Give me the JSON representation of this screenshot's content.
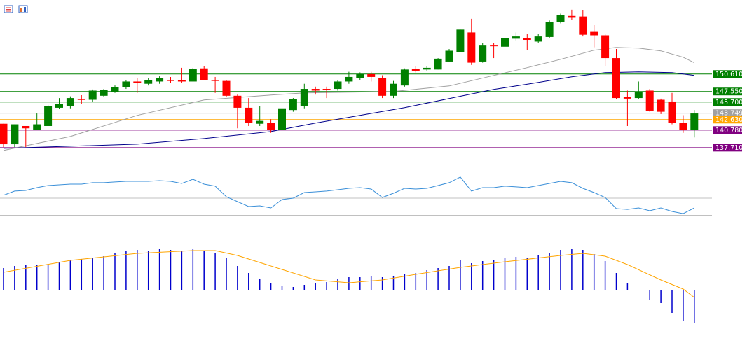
{
  "chart_data": [
    {
      "type": "candlestick",
      "ylim": [
        137.2,
        163.6
      ],
      "up_color": "#008000",
      "down_color": "#ff0000",
      "open": [
        141.9,
        138.3,
        141.5,
        140.8,
        141.5,
        144.7,
        145.0,
        146.2,
        146.1,
        146.8,
        147.5,
        148.3,
        149.3,
        148.9,
        149.3,
        149.6,
        149.5,
        149.3,
        151.6,
        149.6,
        149.4,
        146.8,
        144.7,
        141.9,
        142.1,
        140.8,
        144.3,
        145.0,
        148.0,
        148.0,
        148.0,
        149.3,
        149.9,
        150.6,
        149.9,
        146.8,
        148.6,
        151.5,
        151.4,
        151.4,
        152.8,
        154.5,
        157.9,
        152.8,
        155.6,
        155.4,
        156.8,
        156.9,
        156.3,
        157.1,
        159.7,
        160.8,
        160.7,
        158.0,
        157.4,
        153.4,
        146.6,
        146.4,
        147.7,
        146.1,
        145.8,
        142.1,
        140.8
      ],
      "high": [
        141.9,
        141.8,
        141.5,
        143.7,
        145.2,
        146.4,
        146.7,
        146.9,
        147.9,
        148.0,
        148.6,
        149.5,
        149.9,
        149.9,
        150.2,
        150.1,
        151.7,
        151.7,
        152.0,
        150.1,
        149.6,
        147.0,
        146.4,
        145.0,
        142.7,
        145.7,
        146.4,
        148.9,
        148.4,
        148.4,
        149.5,
        151.0,
        150.9,
        151.0,
        150.4,
        149.4,
        151.6,
        152.0,
        152.0,
        153.4,
        155.0,
        158.4,
        160.3,
        156.0,
        156.0,
        157.1,
        157.9,
        157.6,
        157.7,
        160.0,
        161.2,
        161.9,
        161.8,
        159.2,
        157.7,
        155.0,
        147.7,
        149.3,
        148.0,
        146.3,
        147.3,
        143.4,
        144.3
      ],
      "low": [
        137.8,
        137.8,
        137.8,
        140.8,
        141.5,
        144.5,
        144.6,
        145.4,
        145.8,
        146.6,
        147.3,
        148.0,
        147.3,
        148.6,
        148.9,
        149.1,
        149.0,
        149.3,
        149.5,
        147.3,
        146.6,
        141.1,
        141.5,
        141.5,
        140.3,
        140.8,
        144.0,
        144.6,
        147.0,
        146.4,
        147.7,
        148.9,
        149.5,
        149.3,
        146.4,
        146.4,
        148.4,
        150.9,
        151.1,
        151.4,
        152.8,
        154.4,
        152.2,
        152.6,
        153.4,
        155.2,
        156.5,
        154.8,
        156.0,
        156.9,
        159.5,
        160.1,
        157.2,
        155.3,
        152.0,
        146.2,
        141.5,
        146.2,
        144.0,
        143.6,
        141.8,
        140.3,
        139.5
      ],
      "close": [
        138.3,
        141.8,
        141.1,
        141.8,
        145.0,
        145.4,
        146.4,
        146.1,
        147.7,
        147.8,
        148.3,
        149.3,
        149.0,
        149.5,
        149.9,
        149.4,
        149.3,
        151.5,
        149.5,
        149.4,
        146.8,
        144.7,
        142.1,
        142.4,
        140.8,
        144.6,
        146.2,
        148.0,
        147.7,
        147.8,
        149.3,
        150.1,
        150.6,
        150.1,
        146.8,
        148.9,
        151.4,
        151.2,
        151.7,
        153.3,
        154.7,
        158.4,
        152.6,
        155.6,
        155.5,
        156.9,
        157.2,
        156.6,
        157.2,
        159.7,
        160.9,
        160.6,
        157.5,
        157.4,
        153.4,
        146.4,
        146.3,
        147.5,
        144.2,
        144.0,
        142.1,
        140.8,
        143.7
      ],
      "lines": [
        {
          "color": "#a0a0a0",
          "x": [
            0,
            6,
            12,
            18,
            24,
            27,
            35,
            40,
            44,
            47,
            50,
            53,
            55,
            57,
            59,
            61,
            62
          ],
          "values": [
            137.21,
            139.67,
            143.36,
            146.06,
            146.92,
            147.29,
            147.54,
            148.52,
            150.36,
            151.72,
            153.19,
            154.79,
            155.28,
            155.16,
            154.67,
            153.56,
            152.58
          ]
        },
        {
          "color": "#00008b",
          "x": [
            0,
            12,
            18,
            24,
            28,
            32,
            36,
            40,
            44,
            48,
            51,
            54,
            57,
            60,
            62
          ],
          "values": [
            137.58,
            138.32,
            139.3,
            140.53,
            142.01,
            143.36,
            144.71,
            146.31,
            147.91,
            149.14,
            150.12,
            150.86,
            150.98,
            150.86,
            150.36
          ]
        }
      ],
      "levels": [
        {
          "value": 150.61,
          "label": "150.610",
          "color": "#008000"
        },
        {
          "value": 147.55,
          "label": "147.550",
          "color": "#008000"
        },
        {
          "value": 145.7,
          "label": "145.700",
          "color": "#008000"
        },
        {
          "value": 143.749,
          "label": "143.749",
          "color": "#a0a0a0"
        },
        {
          "value": 142.63,
          "label": "142.630",
          "color": "#ffa500"
        },
        {
          "value": 140.78,
          "label": "140.780",
          "color": "#800080"
        },
        {
          "value": 137.71,
          "label": "137.710",
          "color": "#800080"
        }
      ]
    },
    {
      "type": "line",
      "ylim": [
        23.9,
        76.9
      ],
      "yticks": [
        30,
        50,
        70
      ],
      "grid": true,
      "color": "#3a8fd8",
      "values": [
        53.3,
        58.2,
        59.0,
        62.2,
        64.7,
        65.5,
        66.3,
        66.3,
        68.0,
        68.0,
        68.8,
        69.6,
        69.6,
        69.6,
        70.4,
        69.6,
        67.1,
        72.0,
        66.3,
        63.9,
        51.6,
        45.9,
        40.2,
        41.0,
        38.6,
        48.4,
        50.0,
        56.5,
        57.3,
        58.2,
        59.8,
        61.4,
        62.2,
        60.6,
        50.8,
        55.7,
        61.4,
        60.6,
        61.4,
        64.7,
        68.0,
        74.5,
        58.2,
        62.2,
        62.2,
        63.9,
        63.1,
        62.2,
        64.7,
        67.1,
        69.6,
        68.0,
        61.4,
        56.5,
        50.8,
        37.8,
        36.9,
        38.6,
        35.3,
        38.6,
        34.5,
        32.0,
        38.6
      ]
    },
    {
      "type": "bar",
      "ylim": [
        -6.5,
        8.5
      ],
      "color": "#0000cd",
      "values": [
        3.2,
        3.5,
        3.6,
        3.7,
        3.8,
        4.0,
        4.4,
        4.5,
        4.7,
        4.9,
        5.3,
        5.7,
        5.8,
        5.7,
        5.9,
        5.8,
        5.7,
        5.9,
        5.7,
        5.3,
        4.7,
        3.5,
        2.5,
        1.7,
        1.0,
        0.7,
        0.5,
        0.8,
        1.0,
        1.2,
        1.7,
        1.9,
        1.9,
        2.0,
        1.9,
        2.0,
        2.3,
        2.5,
        2.9,
        3.2,
        3.5,
        4.3,
        3.9,
        4.2,
        4.4,
        4.7,
        4.8,
        4.7,
        5.0,
        5.4,
        5.8,
        5.9,
        5.8,
        5.2,
        4.2,
        2.5,
        1.0,
        0.0,
        -1.3,
        -1.8,
        -3.2,
        -4.3,
        -4.7
      ],
      "lines": [
        {
          "color": "#ffa500",
          "x": [
            0,
            6,
            12,
            17,
            19,
            21,
            25,
            28,
            31,
            34,
            37,
            41,
            45,
            50,
            52,
            54,
            56,
            59,
            61,
            62
          ],
          "values": [
            2.6,
            4.3,
            5.3,
            5.7,
            5.7,
            5.0,
            3.0,
            1.5,
            1.1,
            1.5,
            2.3,
            3.3,
            4.1,
            5.0,
            5.3,
            4.9,
            3.7,
            1.5,
            0.2,
            -1.0
          ]
        }
      ]
    }
  ]
}
